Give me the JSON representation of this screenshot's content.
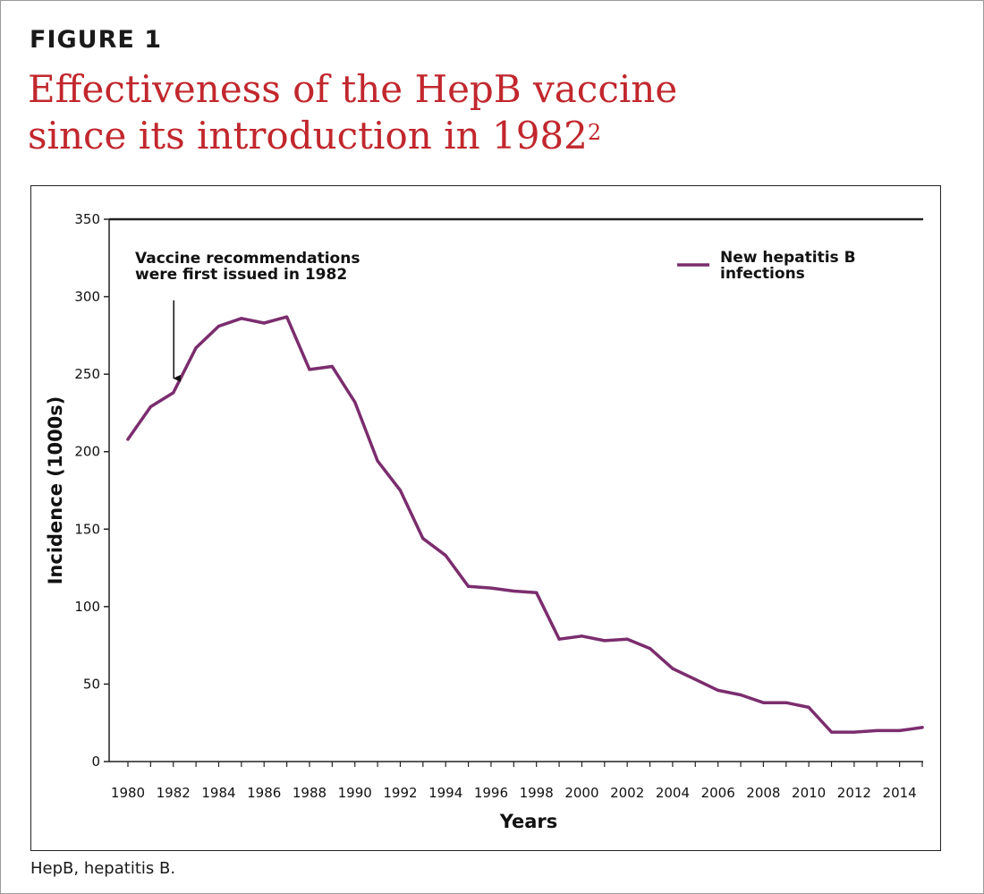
{
  "figure_label": "FIGURE 1",
  "title_line1": "Effectiveness of the HepB vaccine",
  "title_line2": "since its introduction in 1982",
  "title_superscript": "2",
  "footnote": "HepB, hepatitis B.",
  "colors": {
    "title": "#c1272d",
    "series": "#7b2d6e",
    "axis": "#222222"
  },
  "chart_data": {
    "type": "line",
    "title": "Effectiveness of the HepB vaccine since its introduction in 1982",
    "xlabel": "Years",
    "ylabel": "Incidence (1000s)",
    "xlim": [
      1980,
      2015
    ],
    "ylim": [
      0,
      350
    ],
    "yticks": [
      0,
      50,
      100,
      150,
      200,
      250,
      300,
      350
    ],
    "xtick_labels": [
      1980,
      1982,
      1984,
      1986,
      1988,
      1990,
      1992,
      1994,
      1996,
      1998,
      2000,
      2002,
      2004,
      2006,
      2008,
      2010,
      2012,
      2014
    ],
    "legend_position": "top-right",
    "grid": false,
    "series": [
      {
        "name": "New hepatitis B infections",
        "name_lines": [
          "New hepatitis B",
          "infections"
        ],
        "x": [
          1980,
          1981,
          1982,
          1983,
          1984,
          1985,
          1986,
          1987,
          1988,
          1989,
          1990,
          1991,
          1992,
          1993,
          1994,
          1995,
          1996,
          1997,
          1998,
          1999,
          2000,
          2001,
          2002,
          2003,
          2004,
          2005,
          2006,
          2007,
          2008,
          2009,
          2010,
          2011,
          2012,
          2013,
          2014,
          2015
        ],
        "values": [
          208,
          229,
          238,
          267,
          281,
          286,
          283,
          287,
          253,
          255,
          232,
          194,
          175,
          144,
          133,
          113,
          112,
          110,
          109,
          79,
          81,
          78,
          79,
          73,
          60,
          53,
          46,
          43,
          38,
          38,
          35,
          19,
          19,
          20,
          20,
          22
        ]
      }
    ],
    "annotations": [
      {
        "text_lines": [
          "Vaccine recommendations",
          "were first issued in 1982"
        ],
        "x": 1982,
        "arrow_tip_y": 245,
        "arrow_tail_y": 300
      }
    ]
  }
}
